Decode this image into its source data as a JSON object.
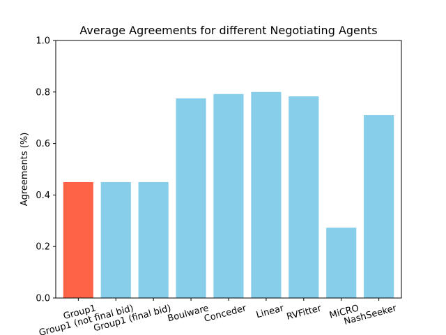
{
  "chart_data": {
    "type": "bar",
    "title": "Average Agreements for different Negotiating Agents",
    "xlabel": "",
    "ylabel": "Agreements (%)",
    "ylim": [
      0,
      1.0
    ],
    "yticks": [
      "0.0",
      "0.2",
      "0.4",
      "0.6",
      "0.8",
      "1.0"
    ],
    "grid": false,
    "categories": [
      "Group1",
      "Group1 (not final bid)",
      "Group1 (final bid)",
      "Boulware",
      "Conceder",
      "Linear",
      "RVFitter",
      "MiCRO",
      "NashSeeker"
    ],
    "values": [
      0.45,
      0.45,
      0.45,
      0.775,
      0.792,
      0.8,
      0.783,
      0.273,
      0.71
    ],
    "colors": [
      "#ff6347",
      "#87ceeb",
      "#87ceeb",
      "#87ceeb",
      "#87ceeb",
      "#87ceeb",
      "#87ceeb",
      "#87ceeb",
      "#87ceeb"
    ]
  }
}
